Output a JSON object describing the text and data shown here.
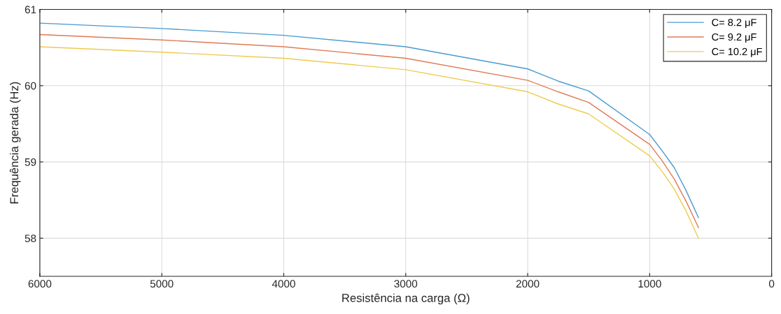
{
  "chart_data": {
    "type": "line",
    "xlabel": "Resistência na carga (Ω)",
    "ylabel": "Frequência gerada (Hz)",
    "x": [
      6000,
      5000,
      4000,
      3000,
      2000,
      1750,
      1500,
      1000,
      900,
      800,
      700,
      600
    ],
    "series": [
      {
        "name": "C= 8.2 μF",
        "color": "#4a9ad0",
        "values": [
          60.82,
          60.75,
          60.66,
          60.51,
          60.22,
          60.06,
          59.93,
          59.36,
          59.15,
          58.93,
          58.62,
          58.27
        ]
      },
      {
        "name": "C= 9.2 μF",
        "color": "#e07a55",
        "values": [
          60.67,
          60.6,
          60.51,
          60.36,
          60.07,
          59.92,
          59.78,
          59.23,
          59.02,
          58.78,
          58.48,
          58.14
        ]
      },
      {
        "name": "C= 10.2 μF",
        "color": "#eecb4f",
        "values": [
          60.51,
          60.44,
          60.36,
          60.21,
          59.92,
          59.76,
          59.63,
          59.08,
          58.88,
          58.65,
          58.35,
          58.0
        ]
      }
    ],
    "xlim": [
      6000,
      0
    ],
    "xticks": [
      6000,
      5000,
      4000,
      3000,
      2000,
      1000,
      0
    ],
    "ylim": [
      57.5,
      61
    ],
    "yticks": [
      58,
      59,
      60,
      61
    ],
    "grid": true,
    "legend": "top right",
    "marker": "none",
    "line_style": "solid"
  }
}
